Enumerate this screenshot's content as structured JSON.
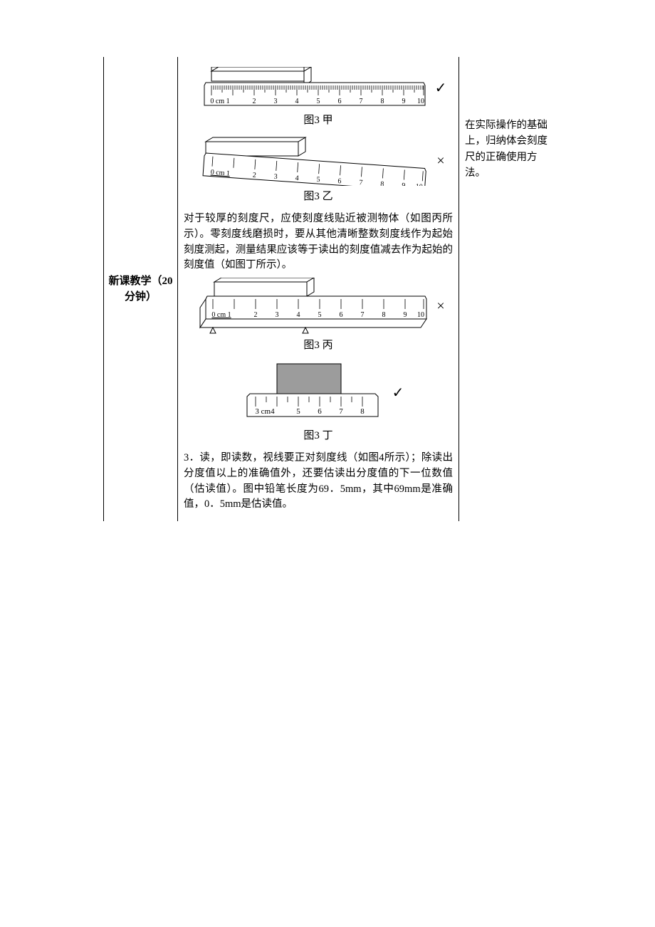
{
  "leftCell": "新课教学（20分钟）",
  "rightNote": "在实际操作的基础上，归纳体会刻度尺的正确使用方法。",
  "captions": {
    "a": "图3 甲",
    "b": "图3 乙",
    "c": "图3 丙",
    "d": "图3 丁"
  },
  "para1": "对于较厚的刻度尺，应使刻度线贴近被测物体（如图丙所示）。零刻度线磨损时，要从其他清晰整数刻度线作为起始刻度测起，测量结果应该等于读出的刻度值减去作为起始的刻度值（如图丁所示）。",
  "para2": "3．读，即读数，视线要正对刻度线（如图4所示）；除读出分度值以上的准确值外，还要估读出分度值的下一位数值（估读值）。图中铅笔长度为69．5mm，其中69mm是准确值，0．5mm是估读值。",
  "marks": {
    "check": "✓",
    "cross": "×"
  },
  "rulerA": {
    "unitLabel": "0 cm 1",
    "majors": [
      2,
      3,
      4,
      5,
      6,
      7,
      8,
      9,
      10
    ],
    "blockStart": 0,
    "blockEnd": 4,
    "correct": true
  },
  "rulerB": {
    "unitLabel": "0 cm 1",
    "majors": [
      2,
      3,
      4,
      5,
      6,
      7,
      8,
      9,
      10
    ],
    "correct": false
  },
  "rulerC": {
    "unitLabel": "0 cm 1",
    "majors": [
      2,
      3,
      4,
      5,
      6,
      7,
      8,
      9,
      10
    ],
    "blockStart": 0,
    "blockEnd": 4,
    "correct": false
  },
  "rulerD": {
    "unitLabel": "3 cm4",
    "majors": [
      5,
      6,
      7,
      8
    ],
    "blockStart": 4,
    "blockEnd": 7,
    "correct": true
  },
  "colors": {
    "line": "#000000",
    "fillBlock": "#ffffff",
    "fillBlockD": "#9c9c9c",
    "bg": "#ffffff"
  }
}
